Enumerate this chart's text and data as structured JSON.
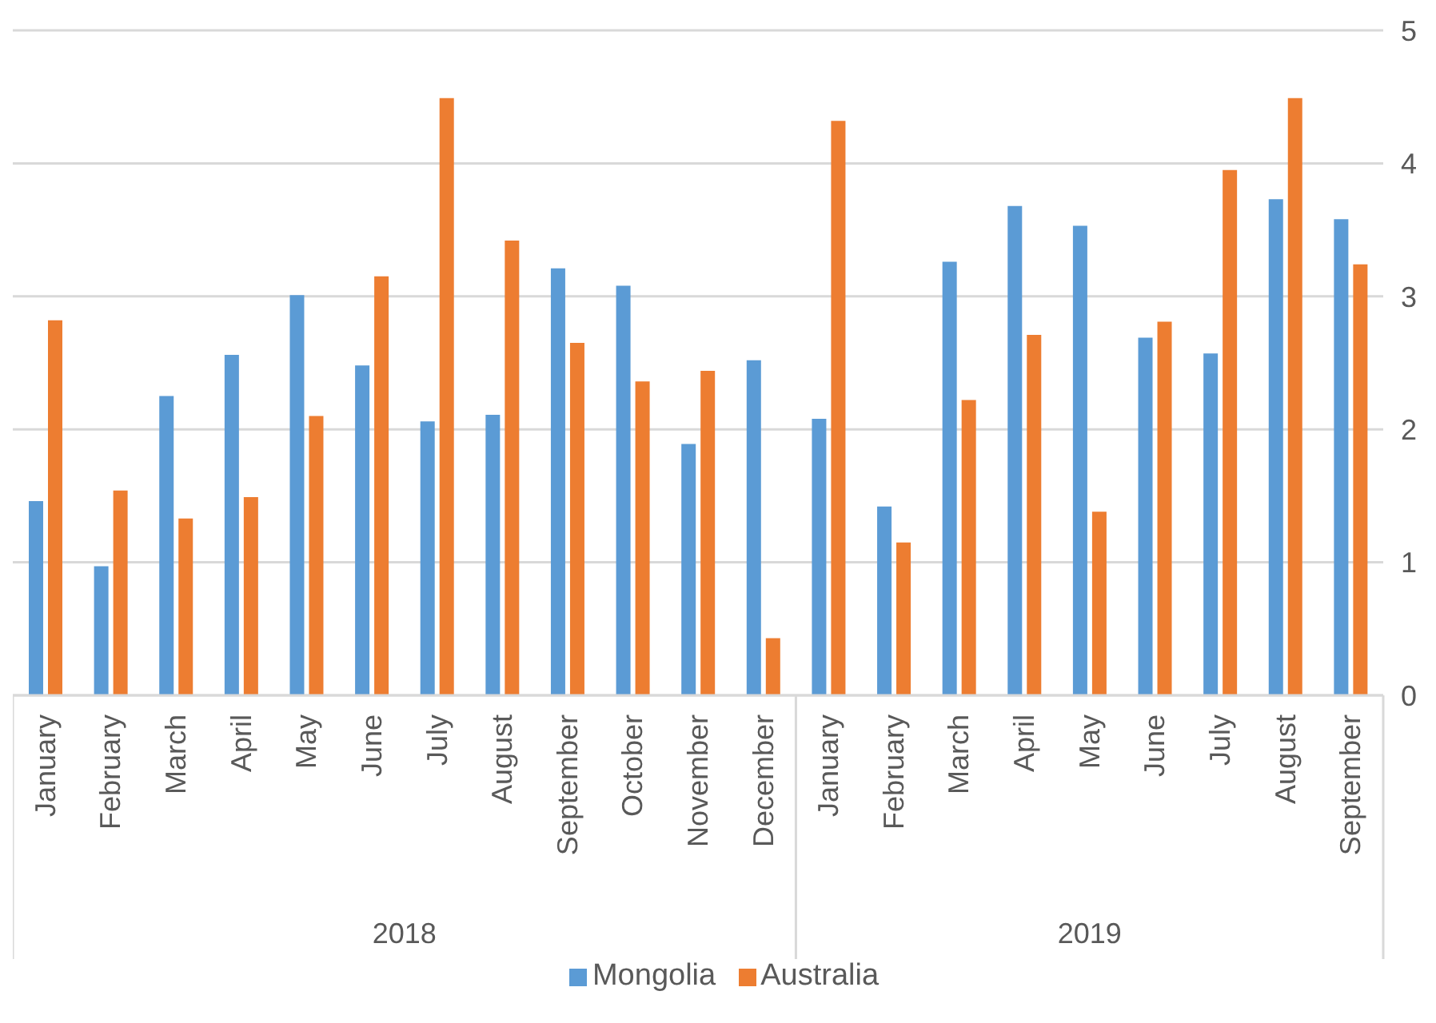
{
  "chart_data": {
    "type": "bar",
    "categories": [
      "January",
      "February",
      "March",
      "April",
      "May",
      "June",
      "July",
      "August",
      "September",
      "October",
      "November",
      "December",
      "January",
      "February",
      "March",
      "April",
      "May",
      "June",
      "July",
      "August",
      "September"
    ],
    "series": [
      {
        "name": "Mongolia",
        "color": "#5b9bd5",
        "values": [
          1.46,
          0.97,
          2.25,
          2.56,
          3.01,
          2.48,
          2.06,
          2.11,
          3.21,
          3.08,
          1.89,
          2.52,
          2.08,
          1.42,
          3.26,
          3.68,
          3.53,
          2.69,
          2.57,
          3.73,
          3.58
        ]
      },
      {
        "name": "Australia",
        "color": "#ed7d31",
        "values": [
          2.82,
          1.54,
          1.33,
          1.49,
          2.1,
          3.15,
          4.49,
          3.42,
          2.65,
          2.36,
          2.44,
          0.43,
          4.32,
          1.15,
          2.22,
          2.71,
          1.38,
          2.81,
          3.95,
          4.49,
          3.24
        ]
      }
    ],
    "annotations": [
      "2018",
      "2019"
    ],
    "ylim": [
      0,
      5
    ],
    "yticks": [
      0,
      1,
      2,
      3,
      4,
      5
    ],
    "grid": "y",
    "legend": "bottom"
  }
}
